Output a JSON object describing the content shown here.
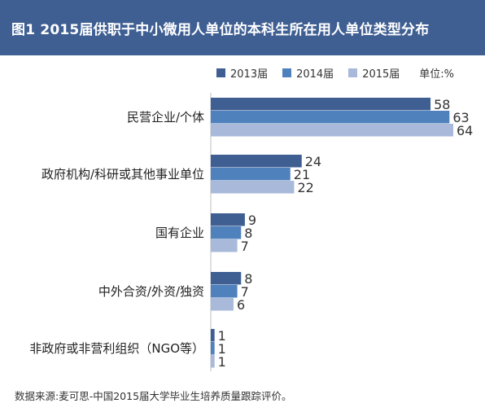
{
  "title": "图1 2015届供职于中小微用人单位的本科生所在用人单位类型分布",
  "unit_label": "单位:%",
  "source": "数据来源:麦可思-中国2015届大学毕业生培养质量跟踪评价。",
  "chart_data": {
    "type": "bar",
    "orientation": "horizontal",
    "categories": [
      "民营企业/个体",
      "政府机构/科研或其他事业单位",
      "国有企业",
      "中外合资/外资/独资",
      "非政府或非营利组织（NGO等）"
    ],
    "series": [
      {
        "name": "2013届",
        "values": [
          58,
          24,
          9,
          8,
          1
        ],
        "color": "#3f5f93"
      },
      {
        "name": "2014届",
        "values": [
          63,
          21,
          8,
          7,
          1
        ],
        "color": "#4f81bd"
      },
      {
        "name": "2015届",
        "values": [
          64,
          22,
          7,
          6,
          1
        ],
        "color": "#a9b9da"
      }
    ],
    "xlim": [
      0,
      64
    ],
    "grid": false,
    "legend": "top-right"
  }
}
